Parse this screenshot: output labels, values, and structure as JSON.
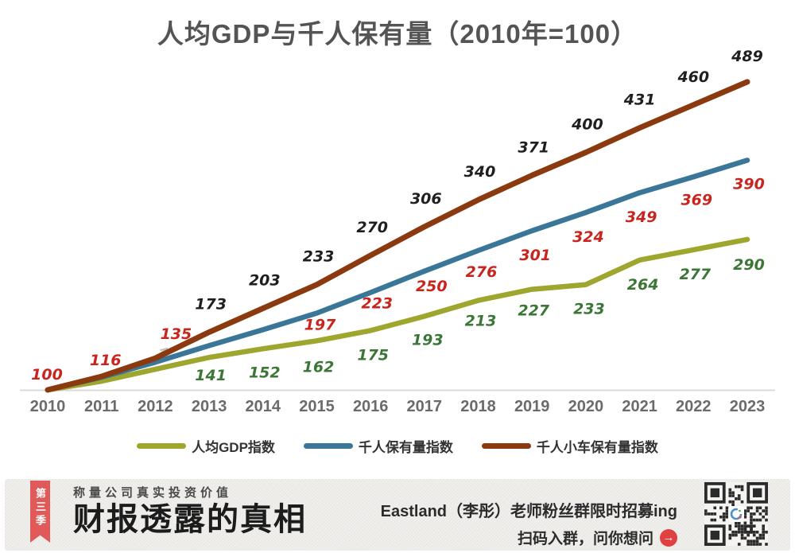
{
  "chart_data": {
    "type": "line",
    "title": "人均GDP与千人保有量（2010年=100）",
    "xlabel": "",
    "ylabel": "",
    "x_labels": [
      "2010",
      "2011",
      "2012",
      "2013",
      "2014",
      "2015",
      "2016",
      "2017",
      "2018",
      "2019",
      "2020",
      "2021",
      "2022",
      "2023"
    ],
    "ylim": [
      100,
      500
    ],
    "grid": false,
    "legend_position": "bottom",
    "axis_color": "#d9d9d9",
    "year_label_color": "#6b6b6b",
    "series": [
      {
        "name": "人均GDP指数",
        "color": "#9EA62E",
        "label_color": "#3C7637",
        "values": [
          100,
          111,
          126,
          141,
          152,
          162,
          175,
          193,
          213,
          227,
          233,
          264,
          277,
          290
        ],
        "labels": [
          null,
          null,
          null,
          "141",
          "152",
          "162",
          "175",
          "193",
          "213",
          "227",
          "233",
          "264",
          "277",
          "290"
        ]
      },
      {
        "name": "千人保有量指数",
        "color": "#3A7697",
        "label_color": "#C9251F",
        "values": [
          100,
          116,
          135,
          156,
          176,
          197,
          223,
          250,
          276,
          301,
          324,
          349,
          369,
          390
        ],
        "labels": [
          "100",
          "116",
          "135",
          null,
          null,
          "197",
          "223",
          "250",
          "276",
          "301",
          "324",
          "349",
          "369",
          "390"
        ]
      },
      {
        "name": "千人小车保有量指数",
        "color": "#8B3A10",
        "label_color": "#1F1F1F",
        "values": [
          100,
          117,
          140,
          173,
          203,
          233,
          270,
          306,
          340,
          371,
          400,
          431,
          460,
          489
        ],
        "labels": [
          null,
          null,
          null,
          "173",
          "203",
          "233",
          "270",
          "306",
          "340",
          "371",
          "400",
          "431",
          "460",
          "489"
        ]
      }
    ]
  },
  "banner": {
    "season_ribbon": "第三季",
    "tagline": "称量公司真实投资价值",
    "series_title": "财报透露的真相",
    "recruit_line": "Eastland（李彤）老师粉丝群限时招募ing",
    "cta_line": "扫码入群，问你想问",
    "arrow_icon": "→",
    "ribbon_color": "#E15A5A",
    "arrow_circle_color": "#E04040"
  }
}
